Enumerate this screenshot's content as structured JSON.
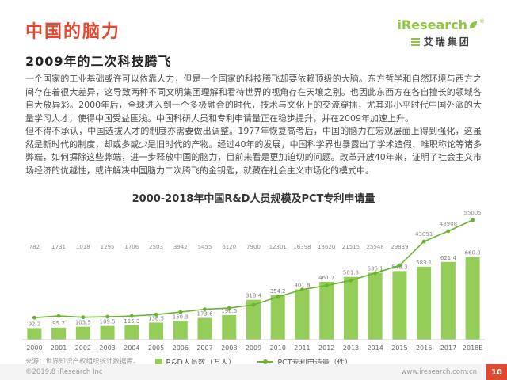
{
  "colors": {
    "accent_red": "#e0492f",
    "brand_green": "#8dc63f",
    "bar_green": "#94ce58",
    "line_green": "#67b52e"
  },
  "header": {
    "title": "中国的脑力",
    "subtitle": "2009年的二次科技腾飞",
    "logo": {
      "brand": "iResearch",
      "reg": "®",
      "group": "艾瑞集团"
    }
  },
  "body": {
    "paragraphs": [
      "一个国家的工业基础或许可以依靠人力，但是一个国家的科技腾飞却要依赖顶级的大脑。东方哲学和自然环境与西方之间存在着很大差异，这导致两种不同文明集团理解和看待世界的视角存在天壤之别。也因此东西方在各自擅长的领域各自大放异彩。2000年后，全球进入到一个多极融合的时代，技术与文化上的交流穿插，尤其邓小平时代中国外派的大量学习人才，使得中国受益匪浅。中国科研人员和专利申请量正在稳步提升，并在2009年加速上升。",
      "但不得不承认，中国选拔人才的制度亦需要做出调整。1977年恢复高考后，中国的脑力在宏观层面上得到强化，这虽然是新时代的制度，却或多或少是旧时代的产物。经过40年的发展，中国科学界也暴露出了学术造假、唯职称论等诸多弊端，如何摒除这些弊端，进一步释放中国的脑力，目前来看是更加迫切的问题。改革开放40年来，证明了社会主义市场经济的优越性，或许解决中国脑力二次腾飞的金钥匙，就藏在社会主义市场化的模式中。"
    ]
  },
  "chart_data": {
    "type": "combo",
    "title": "2000-2018年中国R&D人员规模及PCT专利申请量",
    "categories": [
      "2000",
      "2001",
      "2002",
      "2003",
      "2004",
      "2005",
      "2006",
      "2007",
      "2008",
      "2009",
      "2010",
      "2011",
      "2012",
      "2013",
      "2014",
      "2015",
      "2016",
      "2017",
      "2018E"
    ],
    "series": [
      {
        "name": "R&D人员数（万人）",
        "type": "bar",
        "values": [
          92.2,
          95.7,
          103.5,
          109.5,
          115.3,
          136.5,
          150.3,
          173.6,
          196.5,
          318.4,
          354.2,
          401.8,
          461.7,
          501.8,
          535.1,
          548.3,
          583.1,
          621.4,
          660.0
        ]
      },
      {
        "name": "PCT专利申请量（件）",
        "type": "line",
        "values": [
          782,
          1731,
          1018,
          1295,
          1706,
          2503,
          3942,
          5455,
          6120,
          7900,
          12301,
          16398,
          18620,
          21515,
          25548,
          29839,
          43091,
          48908,
          55005
        ]
      }
    ],
    "ylabel": "",
    "xlabel": "",
    "grid": false,
    "legend_position": "bottom",
    "axes_hidden": true
  },
  "source_note": "来源：世界知识产权组织统计数据库。",
  "footer": {
    "copyright": "©2019.8 iResearch Inc",
    "website": "www.iresearch.com.cn",
    "page_number": "10"
  }
}
